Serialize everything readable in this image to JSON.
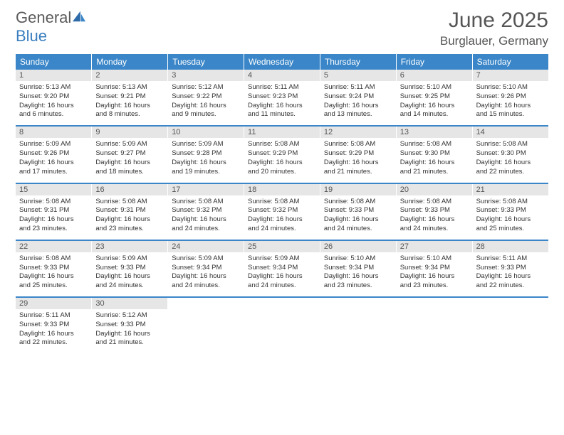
{
  "logo": {
    "part1": "General",
    "part2": "Blue"
  },
  "title": "June 2025",
  "location": "Burglauer, Germany",
  "colors": {
    "header_bg": "#3a86c8",
    "header_text": "#ffffff",
    "daynum_bg": "#e6e6e6",
    "row_border": "#3a86c8",
    "body_text": "#333333",
    "title_text": "#555555",
    "logo_gray": "#5a5a5a",
    "logo_blue": "#3a7ebf"
  },
  "day_headers": [
    "Sunday",
    "Monday",
    "Tuesday",
    "Wednesday",
    "Thursday",
    "Friday",
    "Saturday"
  ],
  "weeks": [
    [
      {
        "n": "1",
        "sr": "Sunrise: 5:13 AM",
        "ss": "Sunset: 9:20 PM",
        "d1": "Daylight: 16 hours",
        "d2": "and 6 minutes."
      },
      {
        "n": "2",
        "sr": "Sunrise: 5:13 AM",
        "ss": "Sunset: 9:21 PM",
        "d1": "Daylight: 16 hours",
        "d2": "and 8 minutes."
      },
      {
        "n": "3",
        "sr": "Sunrise: 5:12 AM",
        "ss": "Sunset: 9:22 PM",
        "d1": "Daylight: 16 hours",
        "d2": "and 9 minutes."
      },
      {
        "n": "4",
        "sr": "Sunrise: 5:11 AM",
        "ss": "Sunset: 9:23 PM",
        "d1": "Daylight: 16 hours",
        "d2": "and 11 minutes."
      },
      {
        "n": "5",
        "sr": "Sunrise: 5:11 AM",
        "ss": "Sunset: 9:24 PM",
        "d1": "Daylight: 16 hours",
        "d2": "and 13 minutes."
      },
      {
        "n": "6",
        "sr": "Sunrise: 5:10 AM",
        "ss": "Sunset: 9:25 PM",
        "d1": "Daylight: 16 hours",
        "d2": "and 14 minutes."
      },
      {
        "n": "7",
        "sr": "Sunrise: 5:10 AM",
        "ss": "Sunset: 9:26 PM",
        "d1": "Daylight: 16 hours",
        "d2": "and 15 minutes."
      }
    ],
    [
      {
        "n": "8",
        "sr": "Sunrise: 5:09 AM",
        "ss": "Sunset: 9:26 PM",
        "d1": "Daylight: 16 hours",
        "d2": "and 17 minutes."
      },
      {
        "n": "9",
        "sr": "Sunrise: 5:09 AM",
        "ss": "Sunset: 9:27 PM",
        "d1": "Daylight: 16 hours",
        "d2": "and 18 minutes."
      },
      {
        "n": "10",
        "sr": "Sunrise: 5:09 AM",
        "ss": "Sunset: 9:28 PM",
        "d1": "Daylight: 16 hours",
        "d2": "and 19 minutes."
      },
      {
        "n": "11",
        "sr": "Sunrise: 5:08 AM",
        "ss": "Sunset: 9:29 PM",
        "d1": "Daylight: 16 hours",
        "d2": "and 20 minutes."
      },
      {
        "n": "12",
        "sr": "Sunrise: 5:08 AM",
        "ss": "Sunset: 9:29 PM",
        "d1": "Daylight: 16 hours",
        "d2": "and 21 minutes."
      },
      {
        "n": "13",
        "sr": "Sunrise: 5:08 AM",
        "ss": "Sunset: 9:30 PM",
        "d1": "Daylight: 16 hours",
        "d2": "and 21 minutes."
      },
      {
        "n": "14",
        "sr": "Sunrise: 5:08 AM",
        "ss": "Sunset: 9:30 PM",
        "d1": "Daylight: 16 hours",
        "d2": "and 22 minutes."
      }
    ],
    [
      {
        "n": "15",
        "sr": "Sunrise: 5:08 AM",
        "ss": "Sunset: 9:31 PM",
        "d1": "Daylight: 16 hours",
        "d2": "and 23 minutes."
      },
      {
        "n": "16",
        "sr": "Sunrise: 5:08 AM",
        "ss": "Sunset: 9:31 PM",
        "d1": "Daylight: 16 hours",
        "d2": "and 23 minutes."
      },
      {
        "n": "17",
        "sr": "Sunrise: 5:08 AM",
        "ss": "Sunset: 9:32 PM",
        "d1": "Daylight: 16 hours",
        "d2": "and 24 minutes."
      },
      {
        "n": "18",
        "sr": "Sunrise: 5:08 AM",
        "ss": "Sunset: 9:32 PM",
        "d1": "Daylight: 16 hours",
        "d2": "and 24 minutes."
      },
      {
        "n": "19",
        "sr": "Sunrise: 5:08 AM",
        "ss": "Sunset: 9:33 PM",
        "d1": "Daylight: 16 hours",
        "d2": "and 24 minutes."
      },
      {
        "n": "20",
        "sr": "Sunrise: 5:08 AM",
        "ss": "Sunset: 9:33 PM",
        "d1": "Daylight: 16 hours",
        "d2": "and 24 minutes."
      },
      {
        "n": "21",
        "sr": "Sunrise: 5:08 AM",
        "ss": "Sunset: 9:33 PM",
        "d1": "Daylight: 16 hours",
        "d2": "and 25 minutes."
      }
    ],
    [
      {
        "n": "22",
        "sr": "Sunrise: 5:08 AM",
        "ss": "Sunset: 9:33 PM",
        "d1": "Daylight: 16 hours",
        "d2": "and 25 minutes."
      },
      {
        "n": "23",
        "sr": "Sunrise: 5:09 AM",
        "ss": "Sunset: 9:33 PM",
        "d1": "Daylight: 16 hours",
        "d2": "and 24 minutes."
      },
      {
        "n": "24",
        "sr": "Sunrise: 5:09 AM",
        "ss": "Sunset: 9:34 PM",
        "d1": "Daylight: 16 hours",
        "d2": "and 24 minutes."
      },
      {
        "n": "25",
        "sr": "Sunrise: 5:09 AM",
        "ss": "Sunset: 9:34 PM",
        "d1": "Daylight: 16 hours",
        "d2": "and 24 minutes."
      },
      {
        "n": "26",
        "sr": "Sunrise: 5:10 AM",
        "ss": "Sunset: 9:34 PM",
        "d1": "Daylight: 16 hours",
        "d2": "and 23 minutes."
      },
      {
        "n": "27",
        "sr": "Sunrise: 5:10 AM",
        "ss": "Sunset: 9:34 PM",
        "d1": "Daylight: 16 hours",
        "d2": "and 23 minutes."
      },
      {
        "n": "28",
        "sr": "Sunrise: 5:11 AM",
        "ss": "Sunset: 9:33 PM",
        "d1": "Daylight: 16 hours",
        "d2": "and 22 minutes."
      }
    ],
    [
      {
        "n": "29",
        "sr": "Sunrise: 5:11 AM",
        "ss": "Sunset: 9:33 PM",
        "d1": "Daylight: 16 hours",
        "d2": "and 22 minutes."
      },
      {
        "n": "30",
        "sr": "Sunrise: 5:12 AM",
        "ss": "Sunset: 9:33 PM",
        "d1": "Daylight: 16 hours",
        "d2": "and 21 minutes."
      },
      {
        "empty": true
      },
      {
        "empty": true
      },
      {
        "empty": true
      },
      {
        "empty": true
      },
      {
        "empty": true
      }
    ]
  ]
}
